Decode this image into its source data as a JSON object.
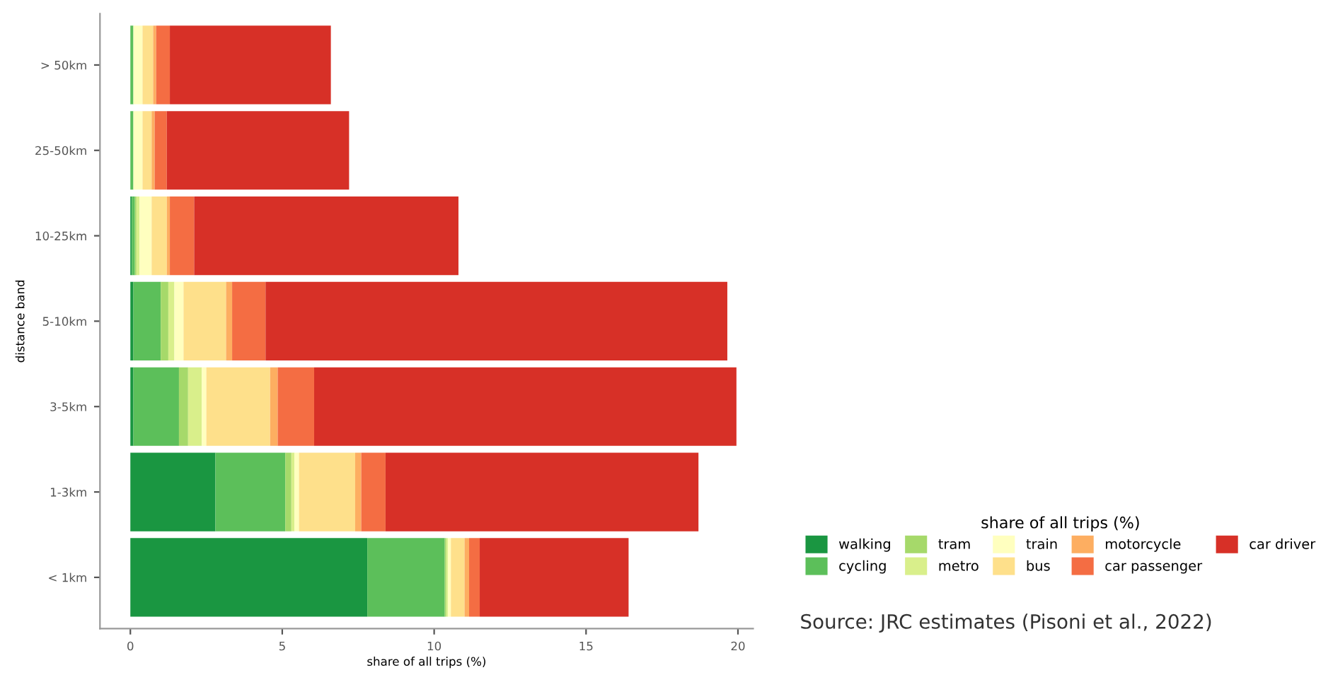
{
  "chart_data": {
    "type": "bar",
    "orientation": "horizontal",
    "stacked": true,
    "categories": [
      "> 50km",
      "25-50km",
      "10-25km",
      "5-10km",
      "3-5km",
      "1-3km",
      "< 1km"
    ],
    "series": [
      {
        "name": "walking",
        "color": "#1a9641",
        "values": [
          0,
          0,
          0.05,
          0.1,
          0.1,
          2.8,
          7.8
        ]
      },
      {
        "name": "cycling",
        "color": "#5cbf5a",
        "values": [
          0.1,
          0.1,
          0.1,
          0.9,
          1.5,
          2.3,
          2.55
        ]
      },
      {
        "name": "tram",
        "color": "#a6d96a",
        "values": [
          0,
          0,
          0.05,
          0.25,
          0.3,
          0.2,
          0.05
        ]
      },
      {
        "name": "metro",
        "color": "#d9ef8b",
        "values": [
          0,
          0,
          0.1,
          0.2,
          0.45,
          0.1,
          0.05
        ]
      },
      {
        "name": "train",
        "color": "#ffffbf",
        "values": [
          0.3,
          0.3,
          0.4,
          0.3,
          0.15,
          0.15,
          0.1
        ]
      },
      {
        "name": "bus",
        "color": "#fee08b",
        "values": [
          0.35,
          0.3,
          0.5,
          1.4,
          2.1,
          1.85,
          0.45
        ]
      },
      {
        "name": "motorcycle",
        "color": "#fdae61",
        "values": [
          0.1,
          0.1,
          0.1,
          0.2,
          0.25,
          0.2,
          0.15
        ]
      },
      {
        "name": "car passenger",
        "color": "#f46d43",
        "values": [
          0.45,
          0.4,
          0.8,
          1.1,
          1.2,
          0.8,
          0.35
        ]
      },
      {
        "name": "car driver",
        "color": "#d73027",
        "values": [
          5.3,
          6.0,
          8.7,
          15.2,
          13.9,
          10.3,
          4.9
        ]
      }
    ],
    "xlim": [
      -1,
      20.5
    ],
    "xticks": [
      0,
      5,
      10,
      15,
      20
    ],
    "xlabel": "share of all trips (%)",
    "ylabel": "distance band",
    "legend_title": "share of all trips (%)",
    "legend": "bottom right",
    "grid": false,
    "annotations": [
      "Source: JRC estimates (Pisoni et al., 2022)"
    ]
  }
}
